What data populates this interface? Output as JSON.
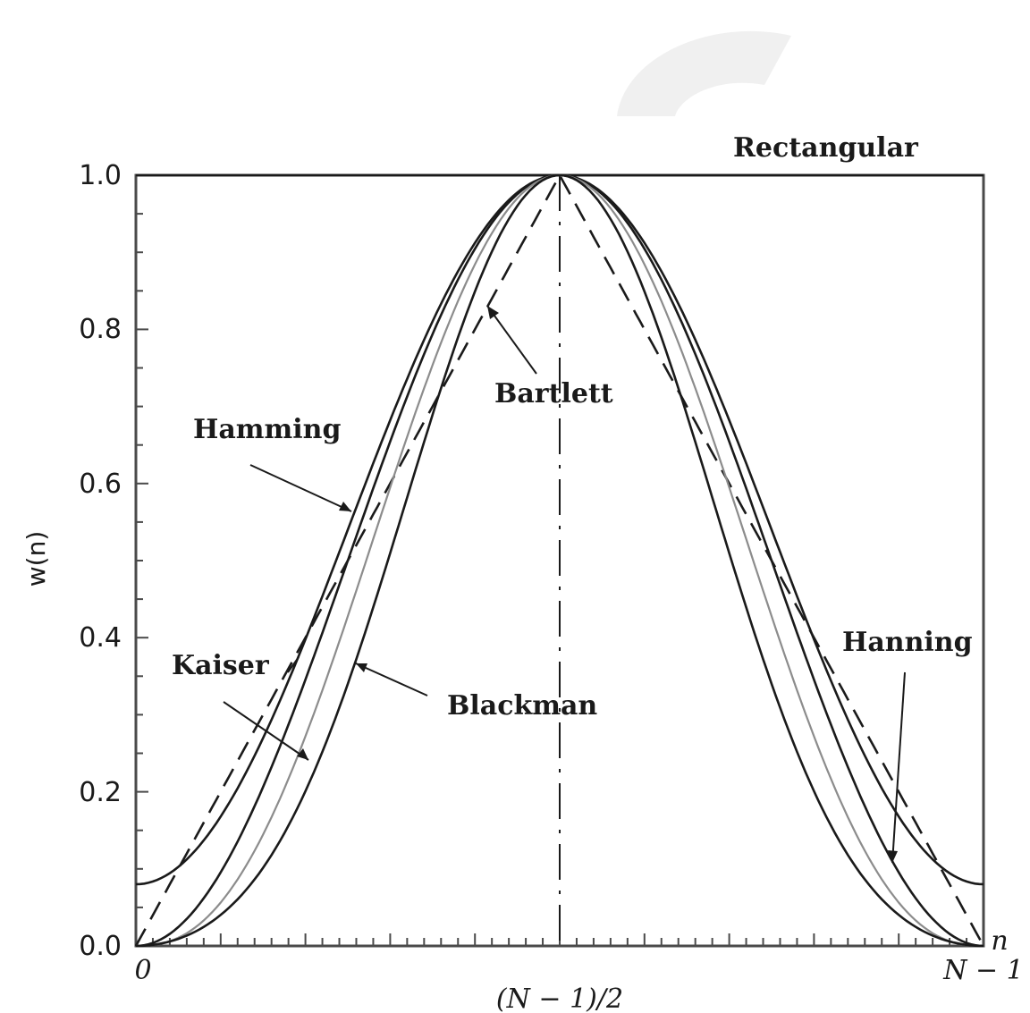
{
  "chart_data": {
    "type": "line",
    "title": "",
    "xlabel": "",
    "ylabel": "w(n)",
    "ylim": [
      0,
      1
    ],
    "y_ticks": [
      "0.0",
      "0.2",
      "0.4",
      "0.6",
      "0.8",
      "1.0"
    ],
    "x_tick_labels": {
      "start": "0",
      "middle": "(N − 1)/2",
      "end": "N − 1",
      "axis_symbol": "n"
    },
    "x_normalized_range": [
      0,
      1
    ],
    "grid": false,
    "colors": {
      "curve": "#1a1a1a",
      "light_curve": "#8c8c8c",
      "frame": "#4a4a4a"
    },
    "series": [
      {
        "name": "Rectangular",
        "style": "solid",
        "x": [
          0,
          1
        ],
        "values": [
          1.0,
          1.0
        ]
      },
      {
        "name": "Bartlett",
        "style": "dashed",
        "x": [
          0,
          0.25,
          0.5,
          0.75,
          1
        ],
        "values": [
          0.0,
          0.5,
          1.0,
          0.5,
          0.0
        ]
      },
      {
        "name": "Hamming",
        "style": "solid",
        "x": [
          0,
          0.1,
          0.2,
          0.3,
          0.4,
          0.5,
          0.6,
          0.7,
          0.8,
          0.9,
          1
        ],
        "values": [
          0.08,
          0.17,
          0.4,
          0.68,
          0.91,
          1.0,
          0.91,
          0.68,
          0.4,
          0.17,
          0.08
        ]
      },
      {
        "name": "Hanning",
        "style": "solid",
        "x": [
          0,
          0.1,
          0.2,
          0.3,
          0.4,
          0.5,
          0.6,
          0.7,
          0.8,
          0.9,
          1
        ],
        "values": [
          0.0,
          0.1,
          0.35,
          0.65,
          0.9,
          1.0,
          0.9,
          0.65,
          0.35,
          0.1,
          0.0
        ]
      },
      {
        "name": "Kaiser",
        "style": "light",
        "x": [
          0,
          0.1,
          0.2,
          0.3,
          0.4,
          0.5,
          0.6,
          0.7,
          0.8,
          0.9,
          1
        ],
        "values": [
          0.0,
          0.05,
          0.25,
          0.55,
          0.86,
          1.0,
          0.86,
          0.55,
          0.25,
          0.05,
          0.0
        ]
      },
      {
        "name": "Blackman",
        "style": "solid",
        "x": [
          0,
          0.1,
          0.2,
          0.3,
          0.4,
          0.5,
          0.6,
          0.7,
          0.8,
          0.9,
          1
        ],
        "values": [
          0.0,
          0.04,
          0.2,
          0.51,
          0.85,
          1.0,
          0.85,
          0.51,
          0.2,
          0.04,
          0.0
        ]
      }
    ],
    "annotations": {
      "rectangular": "Rectangular",
      "bartlett": "Bartlett",
      "hamming": "Hamming",
      "hanning": "Hanning",
      "kaiser": "Kaiser",
      "blackman": "Blackman"
    }
  }
}
